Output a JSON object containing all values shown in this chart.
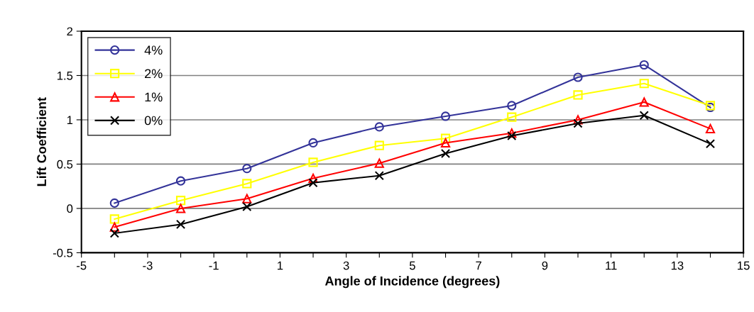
{
  "chart_data": {
    "type": "line",
    "xlabel": "Angle of Incidence (degrees)",
    "ylabel": "Lift Coefficient",
    "x": [
      -4,
      -2,
      0,
      2,
      4,
      6,
      8,
      10,
      12,
      14
    ],
    "series": [
      {
        "name": "4%",
        "color": "#333399",
        "marker": "circle",
        "values": [
          0.06,
          0.31,
          0.45,
          0.74,
          0.92,
          1.04,
          1.16,
          1.48,
          1.62,
          1.14
        ]
      },
      {
        "name": "2%",
        "color": "#ffff00",
        "marker": "square",
        "values": [
          -0.12,
          0.09,
          0.28,
          0.52,
          0.71,
          0.79,
          1.03,
          1.28,
          1.41,
          1.16
        ]
      },
      {
        "name": "1%",
        "color": "#ff0000",
        "marker": "triangle",
        "values": [
          -0.21,
          0.0,
          0.11,
          0.34,
          0.51,
          0.74,
          0.85,
          1.0,
          1.2,
          0.9
        ]
      },
      {
        "name": "0%",
        "color": "#000000",
        "marker": "cross",
        "values": [
          -0.28,
          -0.18,
          0.02,
          0.29,
          0.37,
          0.62,
          0.82,
          0.96,
          1.05,
          0.73
        ]
      }
    ],
    "xlim": [
      -5,
      15
    ],
    "xticks": [
      -5,
      {
        "value": -4,
        "label": null
      },
      -3,
      {
        "value": -2,
        "label": null
      },
      -1,
      {
        "value": 0,
        "label": null
      },
      1,
      {
        "value": 2,
        "label": null
      },
      3,
      {
        "value": 4,
        "label": null
      },
      5,
      {
        "value": 6,
        "label": null
      },
      7,
      {
        "value": 8,
        "label": null
      },
      9,
      {
        "value": 10,
        "label": null
      },
      11,
      {
        "value": 12,
        "label": null
      },
      13,
      {
        "value": 14,
        "label": null
      },
      15
    ],
    "ylim": [
      -0.5,
      2
    ],
    "yticks": [
      -0.5,
      0,
      0.5,
      1,
      1.5,
      2
    ],
    "grid": "y",
    "legend": "top left",
    "line_style": "solid"
  }
}
